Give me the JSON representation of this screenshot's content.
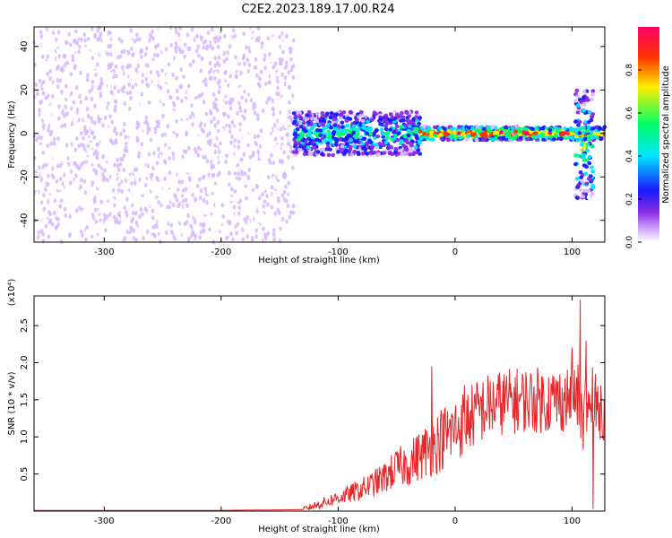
{
  "title": "C2E2.2023.189.17.00.R24",
  "colors": {
    "snr_line": "#e8262a",
    "scatter_points": "#7a1fe0",
    "axis": "#000000"
  },
  "chart_data": [
    {
      "type": "heatmap",
      "xlabel": "Height of straight line (km)",
      "ylabel": "Frequency (Hz)",
      "xlim": [
        -360,
        128
      ],
      "ylim": [
        -50,
        49
      ],
      "xticks": [
        -300,
        -200,
        -100,
        0,
        100
      ],
      "xtick_labels": [
        "-300",
        "-200",
        "-100",
        "0",
        "100"
      ],
      "yticks": [
        -40,
        -20,
        0,
        20,
        40
      ],
      "ytick_labels": [
        "-40",
        "-20",
        "0",
        "20",
        "40"
      ],
      "colorbar": {
        "label": "Normalized spectral amplitude",
        "range": [
          0,
          1
        ],
        "ticks": [
          0.0,
          0.2,
          0.4,
          0.6,
          0.8
        ],
        "tick_labels": [
          "0.0",
          "0.2",
          "0.4",
          "0.6",
          "0.8"
        ],
        "colormap": "rainbow",
        "stops": [
          "#ffffff",
          "#d9b8ff",
          "#8a2be2",
          "#1a1aff",
          "#00e5ff",
          "#00ff66",
          "#ffee00",
          "#ff3300",
          "#ff0066"
        ]
      },
      "regions": [
        {
          "x_range": [
            -360,
            -138
          ],
          "freq_range": [
            -50,
            49
          ],
          "amplitude": 0.05,
          "pattern": "scattered noise"
        },
        {
          "x_range": [
            -138,
            -30
          ],
          "freq_range": [
            -10,
            10
          ],
          "amplitude": 0.35,
          "pattern": "band"
        },
        {
          "x_range": [
            -30,
            128
          ],
          "freq_range": [
            -3,
            3
          ],
          "amplitude": 0.6,
          "pattern": "narrow band"
        },
        {
          "x_range": [
            103,
            118
          ],
          "freq_range": [
            -30,
            20
          ],
          "amplitude": 0.4,
          "pattern": "streak"
        }
      ]
    },
    {
      "type": "line",
      "xlabel": "Height of straight line (km)",
      "ylabel": "SNR (10 * v/v)",
      "y_multiplier": "(x10⁴)",
      "xlim": [
        -360,
        128
      ],
      "ylim": [
        0,
        2.9
      ],
      "xticks": [
        -300,
        -200,
        -100,
        0,
        100
      ],
      "xtick_labels": [
        "-300",
        "-200",
        "-100",
        "0",
        "100"
      ],
      "yticks": [
        0.5,
        1.0,
        1.5,
        2.0,
        2.5
      ],
      "ytick_labels": [
        "0.5",
        "1.0",
        "1.5",
        "2.0",
        "2.5"
      ],
      "series": [
        {
          "x": [
            -360,
            -300,
            -200,
            -130,
            -120,
            -110,
            -100,
            -90,
            -80,
            -70,
            -60,
            -50,
            -40,
            -30,
            -20,
            -10,
            0,
            10,
            20,
            30,
            40,
            50,
            60,
            70,
            80,
            90,
            100,
            105,
            110,
            115,
            120,
            128
          ],
          "y": [
            0.01,
            0.01,
            0.01,
            0.02,
            0.07,
            0.12,
            0.17,
            0.22,
            0.28,
            0.35,
            0.43,
            0.55,
            0.6,
            0.72,
            0.82,
            0.95,
            1.05,
            1.18,
            1.3,
            1.38,
            1.42,
            1.44,
            1.46,
            1.45,
            1.45,
            1.46,
            1.47,
            1.5,
            1.2,
            1.4,
            1.36,
            1.36
          ],
          "spikes": [
            {
              "x": -20,
              "y": 1.95
            },
            {
              "x": 8,
              "y": 1.7
            },
            {
              "x": 72,
              "y": 1.65
            },
            {
              "x": 90,
              "y": 1.5
            },
            {
              "x": 100,
              "y": 2.2
            },
            {
              "x": 107,
              "y": 2.85
            },
            {
              "x": 112,
              "y": 2.3
            },
            {
              "x": 117,
              "y": 2.0
            }
          ]
        }
      ]
    }
  ]
}
